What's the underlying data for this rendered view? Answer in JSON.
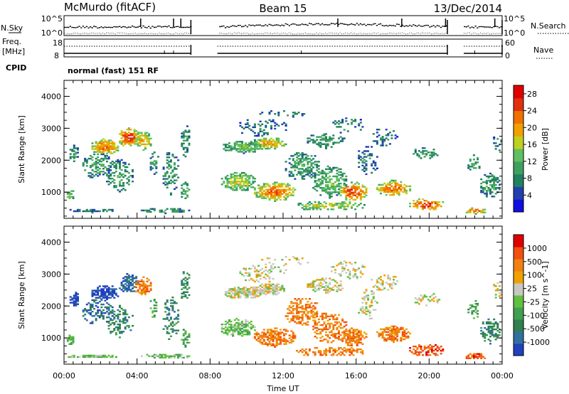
{
  "header": {
    "station": "McMurdo (fitACF)",
    "beam": "Beam 15",
    "date": "13/Dec/2014"
  },
  "top_panels": {
    "nsky_label": "N.Sky",
    "nsearch_label": "N.Search",
    "nsky_ticks": [
      "10^5",
      "10^0"
    ],
    "nsearch_ticks": [
      "10^5",
      "10^0"
    ],
    "freq_label_1": "Freq.",
    "freq_label_2": "[MHz]",
    "freq_ticks": [
      "18",
      "8"
    ],
    "nave_label": "Nave",
    "nave_ticks": [
      "60",
      "0"
    ],
    "cpid_label": "CPID",
    "mode_text": "normal (fast) 151 RF"
  },
  "colors": {
    "power": [
      "#1010e0",
      "#2040b0",
      "#208060",
      "#40a060",
      "#60c060",
      "#c0d020",
      "#f0a000",
      "#f07000",
      "#e03010",
      "#e00000"
    ],
    "velocity": [
      "#2040c0",
      "#3070a0",
      "#308050",
      "#40a050",
      "#60c040",
      "#c8c8c0",
      "#f0a000",
      "#f08010",
      "#f05010",
      "#e00000"
    ]
  },
  "chart_data": [
    {
      "type": "heatmap",
      "name": "power",
      "ylabel": "Slant Range [km]",
      "xlim": [
        0,
        24
      ],
      "ylim": [
        180,
        4500
      ],
      "y_ticks": [
        "1000",
        "2000",
        "3000",
        "4000"
      ],
      "colorbar": {
        "label": "Power [dB]",
        "ticks": [
          "4",
          "8",
          "12",
          "16",
          "20",
          "24",
          "28"
        ],
        "range": [
          0,
          30
        ]
      }
    },
    {
      "type": "heatmap",
      "name": "velocity",
      "xlabel": "Time UT",
      "ylabel": "Slant Range [km]",
      "xlim": [
        0,
        24
      ],
      "ylim": [
        180,
        4500
      ],
      "x_ticks": [
        "00:00",
        "04:00",
        "08:00",
        "12:00",
        "16:00",
        "20:00",
        "00:00"
      ],
      "y_ticks": [
        "1000",
        "2000",
        "3000",
        "4000"
      ],
      "colorbar": {
        "label": "Velocity [m s^-1]",
        "ticks": [
          "1000",
          "500",
          "100",
          "25",
          "-25",
          "-100",
          "-500",
          "-1000"
        ]
      }
    }
  ]
}
